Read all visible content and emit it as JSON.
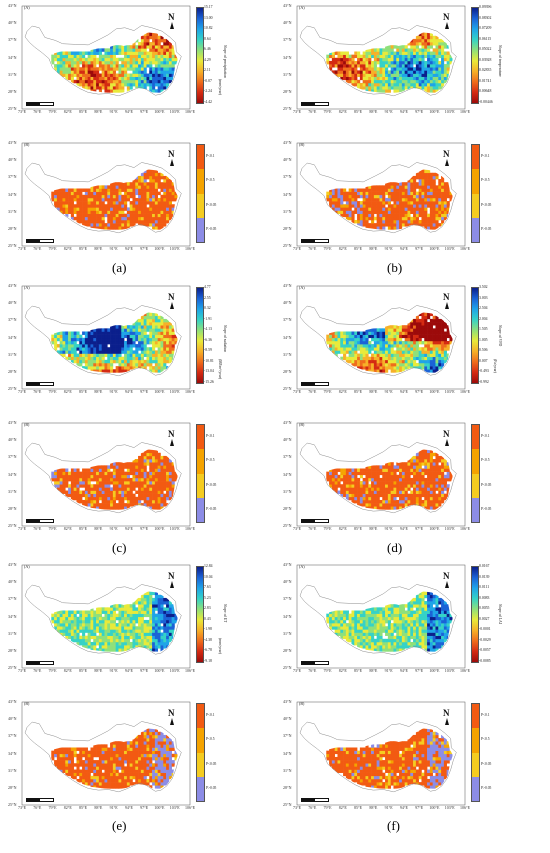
{
  "captions": [
    "(a)",
    "(b)",
    "(c)",
    "(d)",
    "(e)",
    "(f)"
  ],
  "lat_ticks": [
    "43°N",
    "40°N",
    "37°N",
    "34°N",
    "31°N",
    "28°N",
    "25°N"
  ],
  "lon_ticks": [
    "73°E",
    "76°E",
    "79°E",
    "82°E",
    "85°E",
    "88°E",
    "91°E",
    "94°E",
    "97°E",
    "100°E",
    "103°E",
    "106°E"
  ],
  "north_label": "N",
  "significance": {
    "labels": [
      "P<0.1",
      "P<0.5",
      "P<0.05",
      "P>0.05"
    ],
    "colors": [
      "#f25a12",
      "#f5a300",
      "#f5cc20",
      "#8c8ce6"
    ]
  },
  "panels": [
    {
      "id": "a",
      "slope": {
        "sub_label": "(A)",
        "title": "Slope of precipitation",
        "unit": "(mm/year)",
        "ticks": [
          "15.17",
          "13.00",
          "10.82",
          "8.64",
          "6.46",
          "4.29",
          "2.11",
          "-0.07",
          "-2.24",
          "-4.42"
        ],
        "palette": [
          "#0b1f8c",
          "#1b63d6",
          "#1fa4e8",
          "#35d2c6",
          "#8fe07a",
          "#e8ea3a",
          "#f6b128",
          "#ef6d1c",
          "#d42a12",
          "#9c0a0a"
        ]
      },
      "sig": {
        "sub_label": "(B)"
      }
    },
    {
      "id": "b",
      "slope": {
        "sub_label": "(A)",
        "title": "Slope of temperature",
        "unit": "",
        "ticks": [
          "0.09396",
          "0.08302",
          "0.07209",
          "0.06115",
          "0.05022",
          "0.03928",
          "0.02835",
          "0.01741",
          "0.00648",
          "-0.00446"
        ],
        "palette": [
          "#0b1f8c",
          "#1b63d6",
          "#1fa4e8",
          "#35d2c6",
          "#8fe07a",
          "#e8ea3a",
          "#f6b128",
          "#ef6d1c",
          "#d42a12",
          "#9c0a0a"
        ]
      },
      "sig": {
        "sub_label": "(B)"
      }
    },
    {
      "id": "c",
      "slope": {
        "sub_label": "(A)",
        "title": "Slope of radiation",
        "unit": "(MJ/m²/year)",
        "ticks": [
          "4.77",
          "2.55",
          "0.32",
          "-1.91",
          "-4.13",
          "-6.36",
          "-8.59",
          "-10.81",
          "-13.04",
          "-15.26"
        ],
        "palette": [
          "#0b1f8c",
          "#1b63d6",
          "#1fa4e8",
          "#35d2c6",
          "#8fe07a",
          "#e8ea3a",
          "#f6b128",
          "#ef6d1c",
          "#d42a12",
          "#9c0a0a"
        ]
      },
      "sig": {
        "sub_label": "(B)"
      }
    },
    {
      "id": "d",
      "slope": {
        "sub_label": "(A)",
        "title": "Slope of VPD",
        "unit": "(Pa/year)",
        "ticks": [
          "3.502",
          "3.003",
          "2.504",
          "2.004",
          "1.505",
          "1.005",
          "0.506",
          "0.007",
          "-0.493",
          "-0.992"
        ],
        "palette": [
          "#0b1f8c",
          "#1b63d6",
          "#1fa4e8",
          "#35d2c6",
          "#8fe07a",
          "#e8ea3a",
          "#f6b128",
          "#ef6d1c",
          "#d42a12",
          "#9c0a0a"
        ]
      },
      "sig": {
        "sub_label": "(B)"
      }
    },
    {
      "id": "e",
      "slope": {
        "sub_label": "(A)",
        "title": "Slope of ET",
        "unit": "(mm/year)",
        "ticks": [
          "12.84",
          "10.04",
          "7.63",
          "5.23",
          "2.83",
          "0.43",
          "-1.98",
          "-4.38",
          "-6.78",
          "-9.18"
        ],
        "palette": [
          "#0b1f8c",
          "#1b63d6",
          "#1fa4e8",
          "#35d2c6",
          "#8fe07a",
          "#e8ea3a",
          "#f6b128",
          "#ef6d1c",
          "#d42a12",
          "#9c0a0a"
        ]
      },
      "sig": {
        "sub_label": "(B)"
      }
    },
    {
      "id": "f",
      "slope": {
        "sub_label": "(A)",
        "title": "Slope of LAI",
        "unit": "",
        "ticks": [
          "0.0167",
          "0.0139",
          "0.0111",
          "0.0083",
          "0.0055",
          "0.0027",
          "-0.0001",
          "-0.0029",
          "-0.0057",
          "-0.0085"
        ],
        "palette": [
          "#0b1f8c",
          "#1b63d6",
          "#1fa4e8",
          "#35d2c6",
          "#8fe07a",
          "#e8ea3a",
          "#f6b128",
          "#ef6d1c",
          "#d42a12",
          "#9c0a0a"
        ]
      },
      "sig": {
        "sub_label": "(B)"
      }
    }
  ]
}
